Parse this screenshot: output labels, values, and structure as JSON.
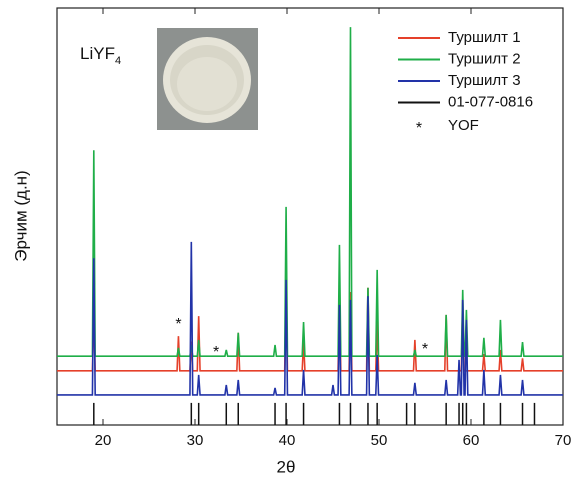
{
  "chart_data": {
    "type": "line",
    "xlabel": "2θ",
    "ylabel": "Эрчим (д.н)",
    "xlim": [
      15,
      70
    ],
    "xticks": [
      20,
      30,
      40,
      50,
      60,
      70
    ],
    "ylim": [
      0,
      100
    ],
    "inset_label": {
      "text": "LiYF",
      "subscript": "4"
    },
    "series": [
      {
        "name": "Туршилт 1",
        "color": "#e5402a",
        "kind": "line",
        "x": [
          15,
          18.85,
          19,
          19.15,
          28.05,
          28.2,
          28.35,
          29.45,
          29.6,
          29.75,
          30.25,
          30.4,
          30.55,
          34.55,
          34.7,
          34.85,
          39.75,
          39.9,
          40.05,
          41.65,
          41.8,
          41.95,
          45.55,
          45.7,
          45.85,
          46.75,
          46.9,
          47.05,
          48.65,
          48.8,
          48.95,
          49.65,
          49.8,
          49.95,
          53.75,
          53.9,
          54.05,
          57.15,
          57.3,
          57.45,
          58.95,
          59.1,
          59.25,
          61.25,
          61.4,
          61.55,
          63.05,
          63.2,
          63.35,
          65.45,
          65.6,
          65.75,
          70
        ],
        "values": [
          13,
          13,
          27.1,
          13,
          13,
          21.3,
          13,
          13,
          20,
          13,
          13,
          26.1,
          13,
          13,
          22.1,
          13,
          13,
          34.8,
          13,
          13,
          20,
          13,
          13,
          30,
          13,
          13,
          31.9,
          13,
          13,
          32.9,
          13,
          13,
          25,
          13,
          13,
          20.4,
          13,
          13,
          26.4,
          13,
          13,
          30,
          13,
          13,
          17,
          13,
          13,
          18,
          13,
          13,
          16,
          13,
          13
        ]
      },
      {
        "name": "Туршилт 2",
        "color": "#1fae48",
        "kind": "line",
        "x": [
          15,
          18.85,
          19,
          19.15,
          28.05,
          28.2,
          28.35,
          29.45,
          29.6,
          29.75,
          30.25,
          30.4,
          30.55,
          33.25,
          33.4,
          33.55,
          34.55,
          34.7,
          34.85,
          38.55,
          38.7,
          38.85,
          39.75,
          39.9,
          40.05,
          41.65,
          41.8,
          41.95,
          45.55,
          45.7,
          45.85,
          46.75,
          46.9,
          47.05,
          48.65,
          48.8,
          48.95,
          49.65,
          49.8,
          49.95,
          53.75,
          53.9,
          54.05,
          57.15,
          57.3,
          57.45,
          58.95,
          59.1,
          59.25,
          59.35,
          59.5,
          59.65,
          61.25,
          61.4,
          61.55,
          63.05,
          63.2,
          63.35,
          65.45,
          65.6,
          65.75,
          70
        ],
        "values": [
          16.5,
          16.5,
          65.9,
          16.5,
          16.5,
          18.5,
          16.5,
          16.5,
          19.2,
          16.5,
          16.5,
          20.4,
          16.5,
          16.5,
          18,
          16.5,
          16.5,
          22.1,
          16.5,
          16.5,
          19.2,
          16.5,
          16.5,
          52.3,
          16.5,
          16.5,
          24.7,
          16.5,
          16.5,
          43.2,
          16.5,
          16.5,
          95.4,
          16.5,
          16.5,
          32.9,
          16.5,
          16.5,
          37.2,
          16.5,
          16.5,
          18,
          16.5,
          16.5,
          26.4,
          16.5,
          16.5,
          32.4,
          16.5,
          16.5,
          27.6,
          16.5,
          16.5,
          20.9,
          16.5,
          16.5,
          25.2,
          16.5,
          16.5,
          19.9,
          16.5,
          16.5
        ]
      },
      {
        "name": "Туршилт 3",
        "color": "#2233a8",
        "kind": "line",
        "x": [
          15,
          18.85,
          19,
          19.15,
          29.45,
          29.6,
          29.75,
          30.25,
          30.4,
          30.55,
          33.25,
          33.4,
          33.55,
          34.55,
          34.7,
          34.85,
          38.55,
          38.7,
          38.85,
          39.75,
          39.9,
          40.05,
          41.65,
          41.8,
          41.95,
          44.85,
          45,
          45.15,
          45.55,
          45.7,
          45.85,
          46.75,
          46.9,
          47.05,
          48.65,
          48.8,
          48.95,
          49.65,
          49.8,
          49.95,
          53.75,
          53.9,
          54.05,
          57.15,
          57.3,
          57.45,
          58.55,
          58.7,
          58.85,
          58.95,
          59.1,
          59.25,
          59.35,
          59.5,
          59.65,
          61.25,
          61.4,
          61.55,
          63.05,
          63.2,
          63.35,
          65.45,
          65.6,
          65.75,
          70
        ],
        "values": [
          7.2,
          7.2,
          40,
          7.2,
          7.2,
          43.9,
          7.2,
          7.2,
          12,
          7.2,
          7.2,
          9.6,
          7.2,
          7.2,
          10.8,
          7.2,
          7.2,
          8.9,
          7.2,
          7.2,
          34.8,
          7.2,
          7.2,
          13.2,
          7.2,
          7.2,
          9.6,
          7.2,
          7.2,
          28.8,
          7.2,
          7.2,
          30,
          7.2,
          7.2,
          30.9,
          7.2,
          7.2,
          16.8,
          7.2,
          7.2,
          10.1,
          7.2,
          7.2,
          10.8,
          7.2,
          7.2,
          15.6,
          7.2,
          7.2,
          30,
          7.2,
          7.2,
          25.2,
          7.2,
          7.2,
          13.2,
          7.2,
          7.2,
          12,
          7.2,
          7.2,
          10.8,
          7.2,
          7.2
        ]
      },
      {
        "name": "01-077-0816",
        "color": "#111111",
        "kind": "stick",
        "x": [
          19,
          29.6,
          30.4,
          33.4,
          34.7,
          38.7,
          39.9,
          41.8,
          45.7,
          46.9,
          48.8,
          49.8,
          53,
          53.9,
          57.3,
          58.7,
          59.1,
          59.5,
          61.4,
          63.2,
          65.6,
          66.9
        ],
        "values": [
          5.3,
          5.3,
          5.3,
          5.3,
          5.3,
          5.3,
          5.3,
          5.3,
          5.3,
          5.3,
          5.3,
          5.3,
          5.3,
          5.3,
          5.3,
          5.3,
          5.3,
          5.3,
          5.3,
          5.3,
          5.3,
          5.3
        ]
      }
    ],
    "markers": {
      "symbol": "*",
      "name": "YOF",
      "x": [
        28.2,
        32.3,
        55.0
      ],
      "y": [
        24.7,
        18.0,
        18.7
      ]
    }
  }
}
